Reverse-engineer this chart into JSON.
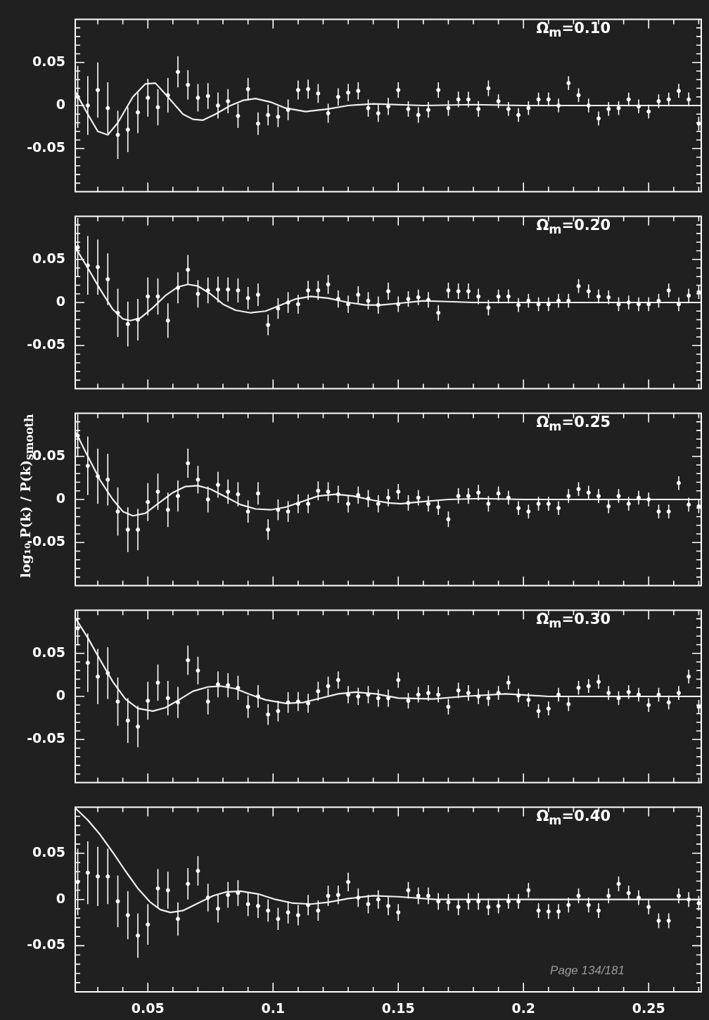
{
  "chart_data": [
    {
      "type": "scatter",
      "annotations": [
        "Ω$_{m}$=0.10"
      ],
      "xlim": [
        0.021,
        0.271
      ],
      "ylim": [
        -0.1,
        0.1
      ],
      "marker": "circle",
      "tick_labels": "y",
      "xticks": [
        {
          "value": 0.03,
          "label": null
        },
        {
          "value": 0.04,
          "label": null
        },
        0.05,
        {
          "value": 0.06,
          "label": null
        },
        {
          "value": 0.07,
          "label": null
        },
        {
          "value": 0.08,
          "label": null
        },
        {
          "value": 0.09,
          "label": null
        },
        0.1,
        {
          "value": 0.11,
          "label": null
        },
        {
          "value": 0.12,
          "label": null
        },
        {
          "value": 0.13,
          "label": null
        },
        {
          "value": 0.14,
          "label": null
        },
        0.15,
        {
          "value": 0.16,
          "label": null
        },
        {
          "value": 0.17,
          "label": null
        },
        {
          "value": 0.18,
          "label": null
        },
        {
          "value": 0.19,
          "label": null
        },
        0.2,
        {
          "value": 0.21,
          "label": null
        },
        {
          "value": 0.22,
          "label": null
        },
        {
          "value": 0.23,
          "label": null
        },
        {
          "value": 0.24,
          "label": null
        },
        0.25,
        {
          "value": 0.26,
          "label": null
        },
        {
          "value": 0.27,
          "label": null
        }
      ],
      "yticks": [
        {
          "value": -0.09,
          "label": null
        },
        {
          "value": -0.08,
          "label": null
        },
        {
          "value": -0.07,
          "label": null
        },
        {
          "value": -0.06,
          "label": null
        },
        -0.05,
        {
          "value": -0.04,
          "label": null
        },
        {
          "value": -0.03,
          "label": null
        },
        {
          "value": -0.02,
          "label": null
        },
        {
          "value": -0.01,
          "label": null
        },
        0,
        {
          "value": 0.01,
          "label": null
        },
        {
          "value": 0.02,
          "label": null
        },
        {
          "value": 0.03,
          "label": null
        },
        {
          "value": 0.04,
          "label": null
        },
        0.05,
        {
          "value": 0.06,
          "label": null
        },
        {
          "value": 0.07,
          "label": null
        },
        {
          "value": 0.08,
          "label": null
        },
        {
          "value": 0.09,
          "label": null
        }
      ],
      "x": [
        0.022,
        0.026,
        0.03,
        0.034,
        0.038,
        0.042,
        0.046,
        0.05,
        0.054,
        0.058,
        0.062,
        0.066,
        0.07,
        0.074,
        0.078,
        0.082,
        0.086,
        0.09,
        0.094,
        0.098,
        0.102,
        0.106,
        0.11,
        0.114,
        0.118,
        0.122,
        0.126,
        0.13,
        0.134,
        0.138,
        0.142,
        0.146,
        0.15,
        0.154,
        0.158,
        0.162,
        0.166,
        0.17,
        0.174,
        0.178,
        0.182,
        0.186,
        0.19,
        0.194,
        0.198,
        0.202,
        0.206,
        0.21,
        0.214,
        0.218,
        0.222,
        0.226,
        0.23,
        0.234,
        0.238,
        0.242,
        0.246,
        0.25,
        0.254,
        0.258,
        0.262,
        0.266,
        0.27
      ],
      "series": [
        {
          "color": "#ffffff",
          "values": [
            0.01,
            0.0,
            0.018,
            -0.003,
            -0.034,
            -0.028,
            -0.008,
            0.009,
            -0.002,
            0.012,
            0.039,
            0.024,
            0.009,
            0.011,
            0,
            0.005,
            -0.012,
            0.019,
            -0.021,
            -0.011,
            -0.013,
            -0.005,
            0.018,
            0.019,
            0.014,
            -0.009,
            0.01,
            0.015,
            0.017,
            -0.003,
            -0.009,
            -0.001,
            0.018,
            -0.004,
            -0.011,
            -0.005,
            0.018,
            -0.003,
            0.007,
            0.007,
            -0.004,
            0.02,
            0.005,
            -0.004,
            -0.011,
            -0.003,
            0.007,
            0.007,
            0,
            0.026,
            0.012,
            0,
            -0.015,
            -0.004,
            -0.003,
            0.007,
            -0.001,
            -0.007,
            0.005,
            0.007,
            0.017,
            0.007,
            -0.021
          ],
          "errors": [
            0.036,
            0.034,
            0.032,
            0.03,
            0.028,
            0.026,
            0.024,
            0.022,
            0.021,
            0.02,
            0.018,
            0.017,
            0.016,
            0.015,
            0.015,
            0.014,
            0.014,
            0.013,
            0.013,
            0.012,
            0.012,
            0.012,
            0.011,
            0.011,
            0.011,
            0.011,
            0.01,
            0.01,
            0.01,
            0.01,
            0.01,
            0.01,
            0.009,
            0.009,
            0.009,
            0.009,
            0.009,
            0.009,
            0.009,
            0.009,
            0.009,
            0.009,
            0.008,
            0.008,
            0.008,
            0.008,
            0.008,
            0.008,
            0.008,
            0.008,
            0.008,
            0.008,
            0.008,
            0.008,
            0.008,
            0.008,
            0.008,
            0.008,
            0.008,
            0.008,
            0.008,
            0.008,
            0.008
          ]
        },
        {
          "type": "line",
          "marker": "none",
          "color": "#f0f0f0",
          "x": [
            0.021,
            0.026,
            0.03,
            0.034,
            0.038,
            0.044,
            0.049,
            0.053,
            0.058,
            0.064,
            0.068,
            0.072,
            0.077,
            0.083,
            0.088,
            0.093,
            0.099,
            0.105,
            0.113,
            0.122,
            0.13,
            0.14,
            0.16,
            0.18,
            0.2,
            0.271
          ],
          "values": [
            0.016,
            -0.01,
            -0.03,
            -0.034,
            -0.02,
            0.01,
            0.025,
            0.026,
            0.01,
            -0.01,
            -0.016,
            -0.017,
            -0.01,
            0.0,
            0.006,
            0.008,
            0.004,
            -0.003,
            -0.007,
            -0.004,
            0.0,
            0.002,
            0.0,
            0.001,
            0.0,
            0.0
          ]
        }
      ]
    },
    {
      "type": "scatter",
      "annotations": [
        "Ω$_{m}$=0.20"
      ],
      "xlim": [
        0.021,
        0.271
      ],
      "ylim": [
        -0.1,
        0.1
      ],
      "marker": "circle",
      "tick_labels": "y",
      "xticks": [
        {
          "value": 0.03,
          "label": null
        },
        {
          "value": 0.04,
          "label": null
        },
        0.05,
        {
          "value": 0.06,
          "label": null
        },
        {
          "value": 0.07,
          "label": null
        },
        {
          "value": 0.08,
          "label": null
        },
        {
          "value": 0.09,
          "label": null
        },
        0.1,
        {
          "value": 0.11,
          "label": null
        },
        {
          "value": 0.12,
          "label": null
        },
        {
          "value": 0.13,
          "label": null
        },
        {
          "value": 0.14,
          "label": null
        },
        0.15,
        {
          "value": 0.16,
          "label": null
        },
        {
          "value": 0.17,
          "label": null
        },
        {
          "value": 0.18,
          "label": null
        },
        {
          "value": 0.19,
          "label": null
        },
        0.2,
        {
          "value": 0.21,
          "label": null
        },
        {
          "value": 0.22,
          "label": null
        },
        {
          "value": 0.23,
          "label": null
        },
        {
          "value": 0.24,
          "label": null
        },
        0.25,
        {
          "value": 0.26,
          "label": null
        },
        {
          "value": 0.27,
          "label": null
        }
      ],
      "yticks": [
        {
          "value": -0.09,
          "label": null
        },
        {
          "value": -0.08,
          "label": null
        },
        {
          "value": -0.07,
          "label": null
        },
        {
          "value": -0.06,
          "label": null
        },
        -0.05,
        {
          "value": -0.04,
          "label": null
        },
        {
          "value": -0.03,
          "label": null
        },
        {
          "value": -0.02,
          "label": null
        },
        {
          "value": -0.01,
          "label": null
        },
        0,
        {
          "value": 0.01,
          "label": null
        },
        {
          "value": 0.02,
          "label": null
        },
        {
          "value": 0.03,
          "label": null
        },
        {
          "value": 0.04,
          "label": null
        },
        0.05,
        {
          "value": 0.06,
          "label": null
        },
        {
          "value": 0.07,
          "label": null
        },
        {
          "value": 0.08,
          "label": null
        },
        {
          "value": 0.09,
          "label": null
        }
      ],
      "x": [
        0.022,
        0.026,
        0.03,
        0.034,
        0.038,
        0.042,
        0.046,
        0.05,
        0.054,
        0.058,
        0.062,
        0.066,
        0.07,
        0.074,
        0.078,
        0.082,
        0.086,
        0.09,
        0.094,
        0.098,
        0.102,
        0.106,
        0.11,
        0.114,
        0.118,
        0.122,
        0.126,
        0.13,
        0.134,
        0.138,
        0.142,
        0.146,
        0.15,
        0.154,
        0.158,
        0.162,
        0.166,
        0.17,
        0.174,
        0.178,
        0.182,
        0.186,
        0.19,
        0.194,
        0.198,
        0.202,
        0.206,
        0.21,
        0.214,
        0.218,
        0.222,
        0.226,
        0.23,
        0.234,
        0.238,
        0.242,
        0.246,
        0.25,
        0.254,
        0.258,
        0.262,
        0.266,
        0.27
      ],
      "series": [
        {
          "color": "#ffffff",
          "values": [
            0.064,
            0.043,
            0.041,
            0.027,
            -0.012,
            -0.025,
            -0.02,
            0.007,
            0.007,
            -0.021,
            0.017,
            0.038,
            0.01,
            0.014,
            0.015,
            0.015,
            0.014,
            0.005,
            0.009,
            -0.026,
            -0.007,
            0,
            -0.002,
            0.014,
            0.014,
            0.021,
            0.004,
            -0.002,
            0.009,
            0.002,
            -0.003,
            0.013,
            -0.002,
            0.004,
            0.006,
            0.003,
            -0.012,
            0.014,
            0.013,
            0.013,
            0.007,
            -0.006,
            0.007,
            0.007,
            -0.003,
            0.002,
            -0.002,
            -0.002,
            0.002,
            0.002,
            0.019,
            0.013,
            0.007,
            0.006,
            -0.002,
            0,
            -0.002,
            -0.002,
            0.002,
            0.014,
            -0.002,
            0.008,
            0.012
          ],
          "errors": [
            0.034,
            0.034,
            0.032,
            0.03,
            0.028,
            0.026,
            0.024,
            0.022,
            0.021,
            0.02,
            0.018,
            0.017,
            0.016,
            0.015,
            0.015,
            0.014,
            0.014,
            0.013,
            0.013,
            0.012,
            0.012,
            0.012,
            0.011,
            0.011,
            0.011,
            0.011,
            0.01,
            0.01,
            0.01,
            0.01,
            0.01,
            0.01,
            0.009,
            0.009,
            0.009,
            0.009,
            0.009,
            0.009,
            0.009,
            0.009,
            0.009,
            0.009,
            0.008,
            0.008,
            0.008,
            0.008,
            0.008,
            0.008,
            0.008,
            0.008,
            0.008,
            0.008,
            0.008,
            0.008,
            0.008,
            0.008,
            0.008,
            0.008,
            0.008,
            0.008,
            0.008,
            0.008,
            0.008
          ]
        },
        {
          "type": "line",
          "marker": "none",
          "color": "#f0f0f0",
          "x": [
            0.021,
            0.026,
            0.031,
            0.036,
            0.04,
            0.043,
            0.047,
            0.052,
            0.057,
            0.062,
            0.066,
            0.07,
            0.075,
            0.08,
            0.085,
            0.091,
            0.097,
            0.103,
            0.109,
            0.115,
            0.122,
            0.13,
            0.137,
            0.143,
            0.15,
            0.16,
            0.17,
            0.18,
            0.271
          ],
          "values": [
            0.064,
            0.04,
            0.015,
            -0.008,
            -0.019,
            -0.021,
            -0.018,
            -0.006,
            0.008,
            0.018,
            0.021,
            0.019,
            0.01,
            -0.002,
            -0.009,
            -0.012,
            -0.01,
            -0.003,
            0.004,
            0.007,
            0.005,
            0.0,
            -0.003,
            -0.003,
            -0.001,
            0.002,
            0.001,
            0.0,
            0.0
          ]
        }
      ]
    },
    {
      "type": "scatter",
      "annotations": [
        "Ω$_{m}$=0.25"
      ],
      "ylabel": "log₁₀ P(k) / P(k)$_{smooth}$",
      "xlim": [
        0.021,
        0.271
      ],
      "ylim": [
        -0.1,
        0.1
      ],
      "marker": "circle",
      "tick_labels": "y",
      "xticks": [
        {
          "value": 0.03,
          "label": null
        },
        {
          "value": 0.04,
          "label": null
        },
        0.05,
        {
          "value": 0.06,
          "label": null
        },
        {
          "value": 0.07,
          "label": null
        },
        {
          "value": 0.08,
          "label": null
        },
        {
          "value": 0.09,
          "label": null
        },
        0.1,
        {
          "value": 0.11,
          "label": null
        },
        {
          "value": 0.12,
          "label": null
        },
        {
          "value": 0.13,
          "label": null
        },
        {
          "value": 0.14,
          "label": null
        },
        0.15,
        {
          "value": 0.16,
          "label": null
        },
        {
          "value": 0.17,
          "label": null
        },
        {
          "value": 0.18,
          "label": null
        },
        {
          "value": 0.19,
          "label": null
        },
        0.2,
        {
          "value": 0.21,
          "label": null
        },
        {
          "value": 0.22,
          "label": null
        },
        {
          "value": 0.23,
          "label": null
        },
        {
          "value": 0.24,
          "label": null
        },
        0.25,
        {
          "value": 0.26,
          "label": null
        },
        {
          "value": 0.27,
          "label": null
        }
      ],
      "yticks": [
        {
          "value": -0.09,
          "label": null
        },
        {
          "value": -0.08,
          "label": null
        },
        {
          "value": -0.07,
          "label": null
        },
        {
          "value": -0.06,
          "label": null
        },
        -0.05,
        {
          "value": -0.04,
          "label": null
        },
        {
          "value": -0.03,
          "label": null
        },
        {
          "value": -0.02,
          "label": null
        },
        {
          "value": -0.01,
          "label": null
        },
        0,
        {
          "value": 0.01,
          "label": null
        },
        {
          "value": 0.02,
          "label": null
        },
        {
          "value": 0.03,
          "label": null
        },
        {
          "value": 0.04,
          "label": null
        },
        0.05,
        {
          "value": 0.06,
          "label": null
        },
        {
          "value": 0.07,
          "label": null
        },
        {
          "value": 0.08,
          "label": null
        },
        {
          "value": 0.09,
          "label": null
        }
      ],
      "x": [
        0.022,
        0.026,
        0.03,
        0.034,
        0.038,
        0.042,
        0.046,
        0.05,
        0.054,
        0.058,
        0.062,
        0.066,
        0.07,
        0.074,
        0.078,
        0.082,
        0.086,
        0.09,
        0.094,
        0.098,
        0.102,
        0.106,
        0.11,
        0.114,
        0.118,
        0.122,
        0.126,
        0.13,
        0.134,
        0.138,
        0.142,
        0.146,
        0.15,
        0.154,
        0.158,
        0.162,
        0.166,
        0.17,
        0.174,
        0.178,
        0.182,
        0.186,
        0.19,
        0.194,
        0.198,
        0.202,
        0.206,
        0.21,
        0.214,
        0.218,
        0.222,
        0.226,
        0.23,
        0.234,
        0.238,
        0.242,
        0.246,
        0.25,
        0.254,
        0.258,
        0.262,
        0.266,
        0.27
      ],
      "series": [
        {
          "color": "#ffffff",
          "values": [
            0.074,
            0.039,
            0.027,
            0.023,
            -0.014,
            -0.035,
            -0.035,
            -0.003,
            0.009,
            -0.012,
            0.004,
            0.042,
            0.023,
            0,
            0.017,
            0.009,
            0.006,
            -0.014,
            0.007,
            -0.035,
            -0.012,
            -0.014,
            -0.005,
            -0.005,
            0.01,
            0.009,
            0.006,
            -0.005,
            0.005,
            0.001,
            -0.005,
            0.002,
            0.009,
            -0.004,
            0.002,
            -0.005,
            -0.009,
            -0.023,
            0.004,
            0.004,
            0.008,
            -0.005,
            0.007,
            0.002,
            -0.01,
            -0.014,
            -0.005,
            -0.005,
            -0.01,
            0.004,
            0.012,
            0.008,
            0.004,
            -0.008,
            0.004,
            -0.005,
            0.002,
            0,
            -0.014,
            -0.014,
            0.019,
            -0.006,
            -0.008
          ],
          "errors": [
            0.025,
            0.034,
            0.032,
            0.03,
            0.028,
            0.026,
            0.024,
            0.022,
            0.021,
            0.02,
            0.018,
            0.017,
            0.016,
            0.015,
            0.015,
            0.014,
            0.014,
            0.013,
            0.013,
            0.012,
            0.012,
            0.012,
            0.011,
            0.011,
            0.011,
            0.011,
            0.01,
            0.01,
            0.01,
            0.01,
            0.01,
            0.01,
            0.009,
            0.009,
            0.009,
            0.009,
            0.009,
            0.009,
            0.009,
            0.009,
            0.009,
            0.009,
            0.008,
            0.008,
            0.008,
            0.008,
            0.008,
            0.008,
            0.008,
            0.008,
            0.008,
            0.008,
            0.008,
            0.008,
            0.008,
            0.008,
            0.008,
            0.008,
            0.008,
            0.008,
            0.008,
            0.008,
            0.008
          ]
        },
        {
          "type": "line",
          "marker": "none",
          "color": "#f0f0f0",
          "x": [
            0.021,
            0.026,
            0.031,
            0.036,
            0.04,
            0.044,
            0.049,
            0.054,
            0.06,
            0.065,
            0.07,
            0.075,
            0.081,
            0.087,
            0.093,
            0.099,
            0.105,
            0.112,
            0.118,
            0.125,
            0.132,
            0.14,
            0.146,
            0.151,
            0.158,
            0.17,
            0.183,
            0.2,
            0.271
          ],
          "values": [
            0.079,
            0.05,
            0.022,
            0.0,
            -0.014,
            -0.019,
            -0.016,
            -0.005,
            0.008,
            0.015,
            0.016,
            0.012,
            0.003,
            -0.006,
            -0.011,
            -0.012,
            -0.009,
            -0.002,
            0.004,
            0.006,
            0.004,
            -0.001,
            -0.004,
            -0.005,
            -0.003,
            0.0,
            0.001,
            0.0,
            0.0
          ]
        }
      ]
    },
    {
      "type": "scatter",
      "annotations": [
        "Ω$_{m}$=0.30"
      ],
      "xlim": [
        0.021,
        0.271
      ],
      "ylim": [
        -0.1,
        0.1
      ],
      "marker": "circle",
      "tick_labels": "y",
      "xticks": [
        {
          "value": 0.03,
          "label": null
        },
        {
          "value": 0.04,
          "label": null
        },
        0.05,
        {
          "value": 0.06,
          "label": null
        },
        {
          "value": 0.07,
          "label": null
        },
        {
          "value": 0.08,
          "label": null
        },
        {
          "value": 0.09,
          "label": null
        },
        0.1,
        {
          "value": 0.11,
          "label": null
        },
        {
          "value": 0.12,
          "label": null
        },
        {
          "value": 0.13,
          "label": null
        },
        {
          "value": 0.14,
          "label": null
        },
        0.15,
        {
          "value": 0.16,
          "label": null
        },
        {
          "value": 0.17,
          "label": null
        },
        {
          "value": 0.18,
          "label": null
        },
        {
          "value": 0.19,
          "label": null
        },
        0.2,
        {
          "value": 0.21,
          "label": null
        },
        {
          "value": 0.22,
          "label": null
        },
        {
          "value": 0.23,
          "label": null
        },
        {
          "value": 0.24,
          "label": null
        },
        0.25,
        {
          "value": 0.26,
          "label": null
        },
        {
          "value": 0.27,
          "label": null
        }
      ],
      "yticks": [
        {
          "value": -0.09,
          "label": null
        },
        {
          "value": -0.08,
          "label": null
        },
        {
          "value": -0.07,
          "label": null
        },
        {
          "value": -0.06,
          "label": null
        },
        -0.05,
        {
          "value": -0.04,
          "label": null
        },
        {
          "value": -0.03,
          "label": null
        },
        {
          "value": -0.02,
          "label": null
        },
        {
          "value": -0.01,
          "label": null
        },
        0,
        {
          "value": 0.01,
          "label": null
        },
        {
          "value": 0.02,
          "label": null
        },
        {
          "value": 0.03,
          "label": null
        },
        {
          "value": 0.04,
          "label": null
        },
        0.05,
        {
          "value": 0.06,
          "label": null
        },
        {
          "value": 0.07,
          "label": null
        },
        {
          "value": 0.08,
          "label": null
        },
        {
          "value": 0.09,
          "label": null
        }
      ],
      "x": [
        0.022,
        0.026,
        0.03,
        0.034,
        0.038,
        0.042,
        0.046,
        0.05,
        0.054,
        0.058,
        0.062,
        0.066,
        0.07,
        0.074,
        0.078,
        0.082,
        0.086,
        0.09,
        0.094,
        0.098,
        0.102,
        0.106,
        0.11,
        0.114,
        0.118,
        0.122,
        0.126,
        0.13,
        0.134,
        0.138,
        0.142,
        0.146,
        0.15,
        0.154,
        0.158,
        0.162,
        0.166,
        0.17,
        0.174,
        0.178,
        0.182,
        0.186,
        0.19,
        0.194,
        0.198,
        0.202,
        0.206,
        0.21,
        0.214,
        0.218,
        0.222,
        0.226,
        0.23,
        0.234,
        0.238,
        0.242,
        0.246,
        0.25,
        0.254,
        0.258,
        0.262,
        0.266,
        0.27
      ],
      "series": [
        {
          "color": "#ffffff",
          "values": [
            0.079,
            0.039,
            0.023,
            0.027,
            -0.006,
            -0.028,
            -0.035,
            -0.005,
            0.016,
            -0.002,
            -0.007,
            0.042,
            0.03,
            -0.006,
            0.014,
            0.013,
            0.01,
            -0.012,
            0,
            -0.021,
            -0.017,
            -0.007,
            -0.006,
            -0.008,
            0.006,
            0.012,
            0.019,
            0.002,
            0,
            0.002,
            -0.002,
            -0.002,
            0.019,
            -0.005,
            0.002,
            0.004,
            0.002,
            -0.012,
            0.007,
            0.004,
            0,
            -0.002,
            0.004,
            0.016,
            0.001,
            -0.004,
            -0.017,
            -0.014,
            0.002,
            -0.009,
            0.01,
            0.012,
            0.017,
            0.004,
            -0.002,
            0.005,
            0.002,
            -0.01,
            0.002,
            -0.007,
            0.004,
            0.023,
            -0.012
          ],
          "errors": [
            0.02,
            0.034,
            0.032,
            0.03,
            0.028,
            0.026,
            0.024,
            0.022,
            0.021,
            0.02,
            0.018,
            0.017,
            0.016,
            0.015,
            0.015,
            0.014,
            0.014,
            0.013,
            0.013,
            0.012,
            0.012,
            0.012,
            0.011,
            0.011,
            0.011,
            0.011,
            0.01,
            0.01,
            0.01,
            0.01,
            0.01,
            0.01,
            0.009,
            0.009,
            0.009,
            0.009,
            0.009,
            0.009,
            0.009,
            0.009,
            0.009,
            0.009,
            0.008,
            0.008,
            0.008,
            0.008,
            0.008,
            0.008,
            0.008,
            0.008,
            0.008,
            0.008,
            0.008,
            0.008,
            0.008,
            0.008,
            0.008,
            0.008,
            0.008,
            0.008,
            0.008,
            0.008,
            0.008
          ]
        },
        {
          "type": "line",
          "marker": "none",
          "color": "#f0f0f0",
          "x": [
            0.021,
            0.026,
            0.031,
            0.036,
            0.041,
            0.046,
            0.052,
            0.057,
            0.063,
            0.068,
            0.074,
            0.079,
            0.085,
            0.091,
            0.097,
            0.105,
            0.112,
            0.119,
            0.126,
            0.133,
            0.141,
            0.15,
            0.164,
            0.176,
            0.193,
            0.21,
            0.271
          ],
          "values": [
            0.091,
            0.068,
            0.042,
            0.017,
            -0.003,
            -0.014,
            -0.017,
            -0.013,
            -0.003,
            0.006,
            0.011,
            0.012,
            0.009,
            0.002,
            -0.004,
            -0.008,
            -0.007,
            -0.002,
            0.003,
            0.005,
            0.003,
            -0.002,
            -0.003,
            0.0,
            0.003,
            0.0,
            0.0
          ]
        }
      ]
    },
    {
      "type": "scatter",
      "annotations": [
        "Ω$_{m}$=0.40",
        "Page 134/181"
      ],
      "xlim": [
        0.021,
        0.271
      ],
      "ylim": [
        -0.1,
        0.1
      ],
      "marker": "circle",
      "xticks": [
        {
          "value": 0.03,
          "label": null
        },
        {
          "value": 0.04,
          "label": null
        },
        0.05,
        {
          "value": 0.06,
          "label": null
        },
        {
          "value": 0.07,
          "label": null
        },
        {
          "value": 0.08,
          "label": null
        },
        {
          "value": 0.09,
          "label": null
        },
        0.1,
        {
          "value": 0.11,
          "label": null
        },
        {
          "value": 0.12,
          "label": null
        },
        {
          "value": 0.13,
          "label": null
        },
        {
          "value": 0.14,
          "label": null
        },
        0.15,
        {
          "value": 0.16,
          "label": null
        },
        {
          "value": 0.17,
          "label": null
        },
        {
          "value": 0.18,
          "label": null
        },
        {
          "value": 0.19,
          "label": null
        },
        0.2,
        {
          "value": 0.21,
          "label": null
        },
        {
          "value": 0.22,
          "label": null
        },
        {
          "value": 0.23,
          "label": null
        },
        {
          "value": 0.24,
          "label": null
        },
        0.25,
        {
          "value": 0.26,
          "label": null
        },
        {
          "value": 0.27,
          "label": null
        }
      ],
      "yticks": [
        {
          "value": -0.09,
          "label": null
        },
        {
          "value": -0.08,
          "label": null
        },
        {
          "value": -0.07,
          "label": null
        },
        {
          "value": -0.06,
          "label": null
        },
        -0.05,
        {
          "value": -0.04,
          "label": null
        },
        {
          "value": -0.03,
          "label": null
        },
        {
          "value": -0.02,
          "label": null
        },
        {
          "value": -0.01,
          "label": null
        },
        0,
        {
          "value": 0.01,
          "label": null
        },
        {
          "value": 0.02,
          "label": null
        },
        {
          "value": 0.03,
          "label": null
        },
        {
          "value": 0.04,
          "label": null
        },
        0.05,
        {
          "value": 0.06,
          "label": null
        },
        {
          "value": 0.07,
          "label": null
        },
        {
          "value": 0.08,
          "label": null
        },
        {
          "value": 0.09,
          "label": null
        }
      ],
      "x": [
        0.022,
        0.026,
        0.03,
        0.034,
        0.038,
        0.042,
        0.046,
        0.05,
        0.054,
        0.058,
        0.062,
        0.066,
        0.07,
        0.074,
        0.078,
        0.082,
        0.086,
        0.09,
        0.094,
        0.098,
        0.102,
        0.106,
        0.11,
        0.114,
        0.118,
        0.122,
        0.126,
        0.13,
        0.134,
        0.138,
        0.142,
        0.146,
        0.15,
        0.154,
        0.158,
        0.162,
        0.166,
        0.17,
        0.174,
        0.178,
        0.182,
        0.186,
        0.19,
        0.194,
        0.198,
        0.202,
        0.206,
        0.21,
        0.214,
        0.218,
        0.222,
        0.226,
        0.23,
        0.234,
        0.238,
        0.242,
        0.246,
        0.25,
        0.254,
        0.258,
        0.262,
        0.266,
        0.27
      ],
      "series": [
        {
          "color": "#ffffff",
          "values": [
            0.019,
            0.029,
            0.025,
            0.025,
            -0.002,
            -0.017,
            -0.039,
            -0.027,
            0.012,
            0.01,
            -0.021,
            0.017,
            0.031,
            0.002,
            -0.01,
            0.005,
            0.007,
            -0.005,
            -0.007,
            -0.012,
            -0.021,
            -0.014,
            -0.017,
            -0.006,
            -0.012,
            0.004,
            0.005,
            0.019,
            0.002,
            -0.005,
            0,
            -0.007,
            -0.014,
            0.01,
            0.004,
            0.004,
            -0.002,
            -0.003,
            -0.008,
            -0.002,
            -0.002,
            -0.008,
            -0.007,
            -0.002,
            -0.002,
            0.01,
            -0.012,
            -0.013,
            -0.013,
            -0.006,
            0.004,
            -0.006,
            -0.012,
            0.004,
            0.017,
            0.007,
            0.002,
            -0.008,
            -0.023,
            -0.023,
            0.004,
            0,
            -0.004
          ],
          "errors": [
            0.036,
            0.034,
            0.032,
            0.03,
            0.028,
            0.026,
            0.024,
            0.022,
            0.021,
            0.02,
            0.018,
            0.017,
            0.016,
            0.015,
            0.015,
            0.014,
            0.014,
            0.013,
            0.013,
            0.012,
            0.012,
            0.012,
            0.011,
            0.011,
            0.011,
            0.011,
            0.01,
            0.01,
            0.01,
            0.01,
            0.01,
            0.01,
            0.009,
            0.009,
            0.009,
            0.009,
            0.009,
            0.009,
            0.009,
            0.009,
            0.009,
            0.009,
            0.008,
            0.008,
            0.008,
            0.008,
            0.008,
            0.008,
            0.008,
            0.008,
            0.008,
            0.008,
            0.008,
            0.008,
            0.008,
            0.008,
            0.008,
            0.008,
            0.008,
            0.008,
            0.008,
            0.008,
            0.008
          ]
        },
        {
          "type": "line",
          "marker": "none",
          "color": "#f0f0f0",
          "x": [
            0.021,
            0.026,
            0.031,
            0.036,
            0.041,
            0.046,
            0.051,
            0.055,
            0.059,
            0.064,
            0.07,
            0.076,
            0.081,
            0.087,
            0.094,
            0.101,
            0.108,
            0.115,
            0.122,
            0.13,
            0.14,
            0.15,
            0.165,
            0.18,
            0.271
          ],
          "values": [
            0.099,
            0.086,
            0.07,
            0.051,
            0.031,
            0.012,
            -0.003,
            -0.011,
            -0.014,
            -0.012,
            -0.004,
            0.004,
            0.008,
            0.009,
            0.006,
            0.0,
            -0.004,
            -0.005,
            -0.003,
            0.001,
            0.004,
            0.003,
            0.0,
            0.0,
            0.0
          ]
        }
      ]
    }
  ]
}
